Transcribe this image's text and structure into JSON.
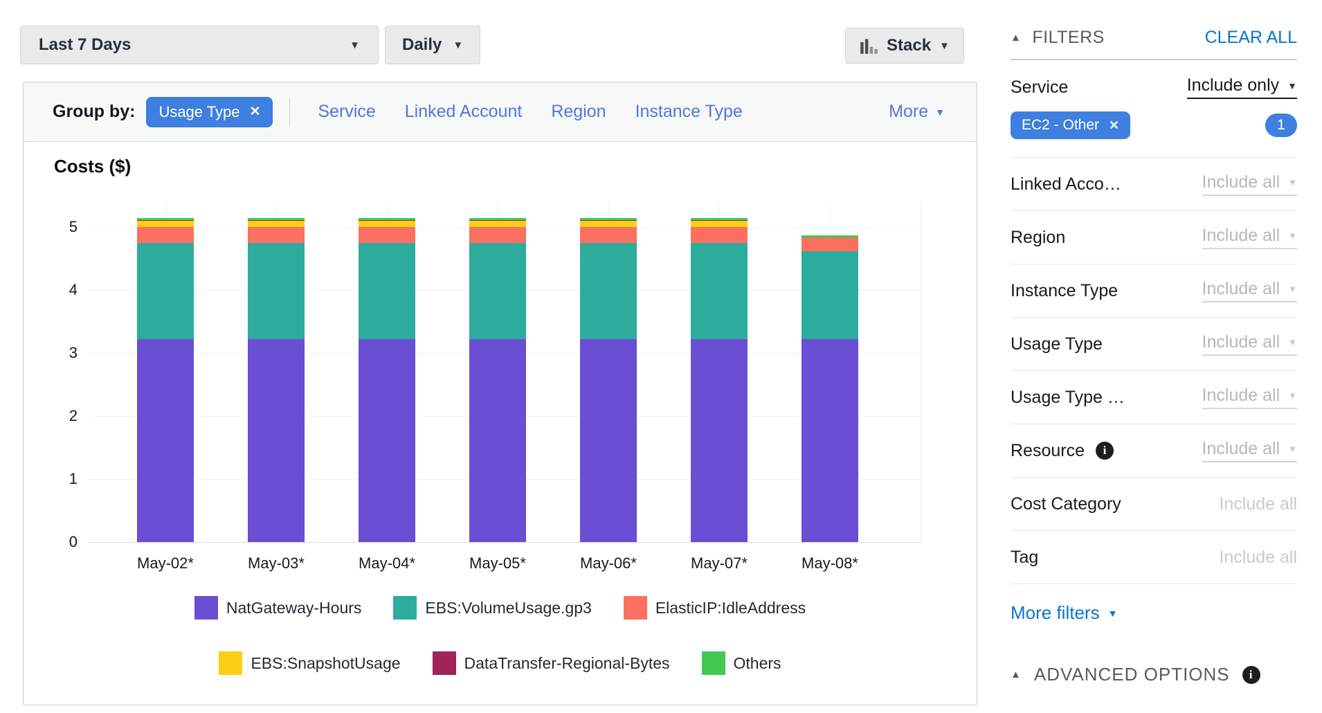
{
  "toolbar": {
    "date_range": "Last 7 Days",
    "granularity": "Daily",
    "chart_style": "Stack"
  },
  "group_by": {
    "label": "Group by:",
    "selected_tag": "Usage Type",
    "links": [
      "Service",
      "Linked Account",
      "Region",
      "Instance Type"
    ],
    "more_label": "More"
  },
  "chart_data": {
    "type": "bar",
    "stacked": true,
    "title": "Costs ($)",
    "categories": [
      "May-02*",
      "May-03*",
      "May-04*",
      "May-05*",
      "May-06*",
      "May-07*",
      "May-08*"
    ],
    "series": [
      {
        "name": "NatGateway-Hours",
        "color": "#6a4ed4",
        "values": [
          3.22,
          3.22,
          3.22,
          3.22,
          3.22,
          3.22,
          3.22
        ]
      },
      {
        "name": "EBS:VolumeUsage.gp3",
        "color": "#2dac9e",
        "values": [
          1.53,
          1.53,
          1.53,
          1.53,
          1.53,
          1.53,
          1.4
        ]
      },
      {
        "name": "ElasticIP:IdleAddress",
        "color": "#fb7060",
        "values": [
          0.25,
          0.25,
          0.25,
          0.25,
          0.25,
          0.25,
          0.22
        ]
      },
      {
        "name": "EBS:SnapshotUsage",
        "color": "#fbcf13",
        "values": [
          0.1,
          0.1,
          0.1,
          0.1,
          0.1,
          0.1,
          0
        ]
      },
      {
        "name": "DataTransfer-Regional-Bytes",
        "color": "#a02359",
        "values": [
          0.005,
          0.005,
          0.005,
          0.005,
          0.005,
          0.005,
          0
        ]
      },
      {
        "name": "Others",
        "color": "#41c952",
        "values": [
          0.04,
          0.04,
          0.04,
          0.04,
          0.04,
          0.04,
          0.03
        ]
      }
    ],
    "ylabel": "Costs ($)",
    "xlabel": "",
    "ylim": [
      0,
      5.4
    ],
    "yticks": [
      0,
      1,
      2,
      3,
      4,
      5
    ],
    "grid": true,
    "legend_position": "bottom"
  },
  "filters": {
    "header": "FILTERS",
    "clear_all": "CLEAR ALL",
    "service": {
      "label": "Service",
      "mode": "Include only",
      "tag": "EC2 - Other",
      "count": "1"
    },
    "rows": [
      {
        "label": "Linked Acco…",
        "value": "Include all",
        "arrow": true,
        "info": false
      },
      {
        "label": "Region",
        "value": "Include all",
        "arrow": true,
        "info": false
      },
      {
        "label": "Instance Type",
        "value": "Include all",
        "arrow": true,
        "info": false
      },
      {
        "label": "Usage Type",
        "value": "Include all",
        "arrow": true,
        "info": false
      },
      {
        "label": "Usage Type …",
        "value": "Include all",
        "arrow": true,
        "info": false
      },
      {
        "label": "Resource",
        "value": "Include all",
        "arrow": true,
        "info": true
      },
      {
        "label": "Cost Category",
        "value": "Include all",
        "arrow": false,
        "info": false
      },
      {
        "label": "Tag",
        "value": "Include all",
        "arrow": false,
        "info": false
      }
    ],
    "more_filters": "More filters",
    "advanced_options": "ADVANCED OPTIONS"
  },
  "colors": {
    "accent_blue": "#3e7fdf",
    "link_blue": "#5276dd",
    "action_blue": "#0b74c9",
    "header_gray": "#545b64",
    "muted_gray": "#b2b8bf"
  }
}
